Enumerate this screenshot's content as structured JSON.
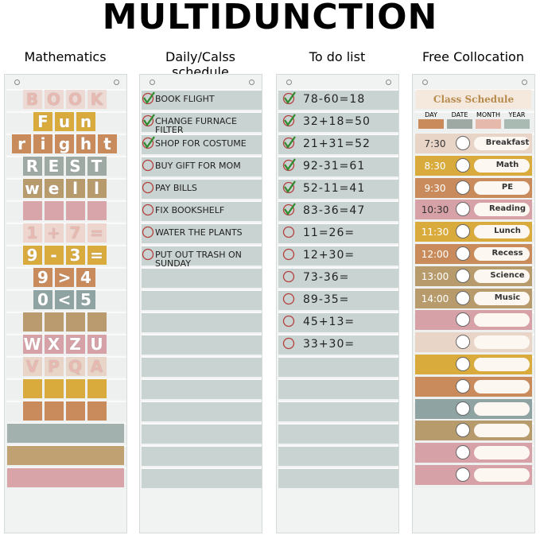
{
  "title": "MULTIDUNCTION",
  "math": {
    "heading": "Mathematics",
    "rows": [
      [
        "B",
        "O",
        "O",
        "K"
      ],
      [
        "F",
        "u",
        "n"
      ],
      [
        "r",
        "i",
        "g",
        "h",
        "t"
      ],
      [
        "R",
        "E",
        "S",
        "T"
      ],
      [
        "w",
        "e",
        "l",
        "l"
      ],
      [
        "1",
        "+",
        "7",
        "="
      ],
      [
        "9",
        "-",
        "3",
        "="
      ],
      [
        "9",
        ">",
        "4"
      ],
      [
        "0",
        "<",
        "5"
      ],
      [
        "W",
        "X",
        "Z",
        "U"
      ],
      [
        "V",
        "P",
        "Q",
        "A"
      ]
    ]
  },
  "daily": {
    "heading": "Daily/Calss schedule",
    "items": [
      {
        "text": "BOOK FLIGHT",
        "done": true
      },
      {
        "text": "CHANGE FURNACE FILTER",
        "done": true
      },
      {
        "text": "SHOP FOR COSTUME",
        "done": true
      },
      {
        "text": "BUY GIFT FOR MOM",
        "done": false
      },
      {
        "text": "PAY BILLS",
        "done": false
      },
      {
        "text": "FIX BOOKSHELF",
        "done": false
      },
      {
        "text": "WATER THE PLANTS",
        "done": false
      },
      {
        "text": "PUT OUT TRASH ON SUNDAY",
        "done": false
      }
    ]
  },
  "todo": {
    "heading": "To do list",
    "items": [
      {
        "text": "78-60=18",
        "done": true
      },
      {
        "text": "32+18=50",
        "done": true
      },
      {
        "text": "21+31=52",
        "done": true
      },
      {
        "text": "92-31=61",
        "done": true
      },
      {
        "text": "52-11=41",
        "done": true
      },
      {
        "text": "83-36=47",
        "done": true
      },
      {
        "text": "11=26=",
        "done": false
      },
      {
        "text": "12+30=",
        "done": false
      },
      {
        "text": "73-36=",
        "done": false
      },
      {
        "text": "89-35=",
        "done": false
      },
      {
        "text": "45+13=",
        "done": false
      },
      {
        "text": "33+30=",
        "done": false
      }
    ]
  },
  "free": {
    "heading": "Free Collocation",
    "card_title": "Class Schedule",
    "date_fields": [
      "DAY",
      "DATE",
      "MONTH",
      "YEAR"
    ],
    "schedule": [
      {
        "time": "7:30",
        "label": "Breakfast"
      },
      {
        "time": "8:30",
        "label": "Math"
      },
      {
        "time": "9:30",
        "label": "PE"
      },
      {
        "time": "10:30",
        "label": "Reading"
      },
      {
        "time": "11:30",
        "label": "Lunch"
      },
      {
        "time": "12:00",
        "label": "Recess"
      },
      {
        "time": "13:00",
        "label": "Science"
      },
      {
        "time": "14:00",
        "label": "Music"
      }
    ]
  }
}
